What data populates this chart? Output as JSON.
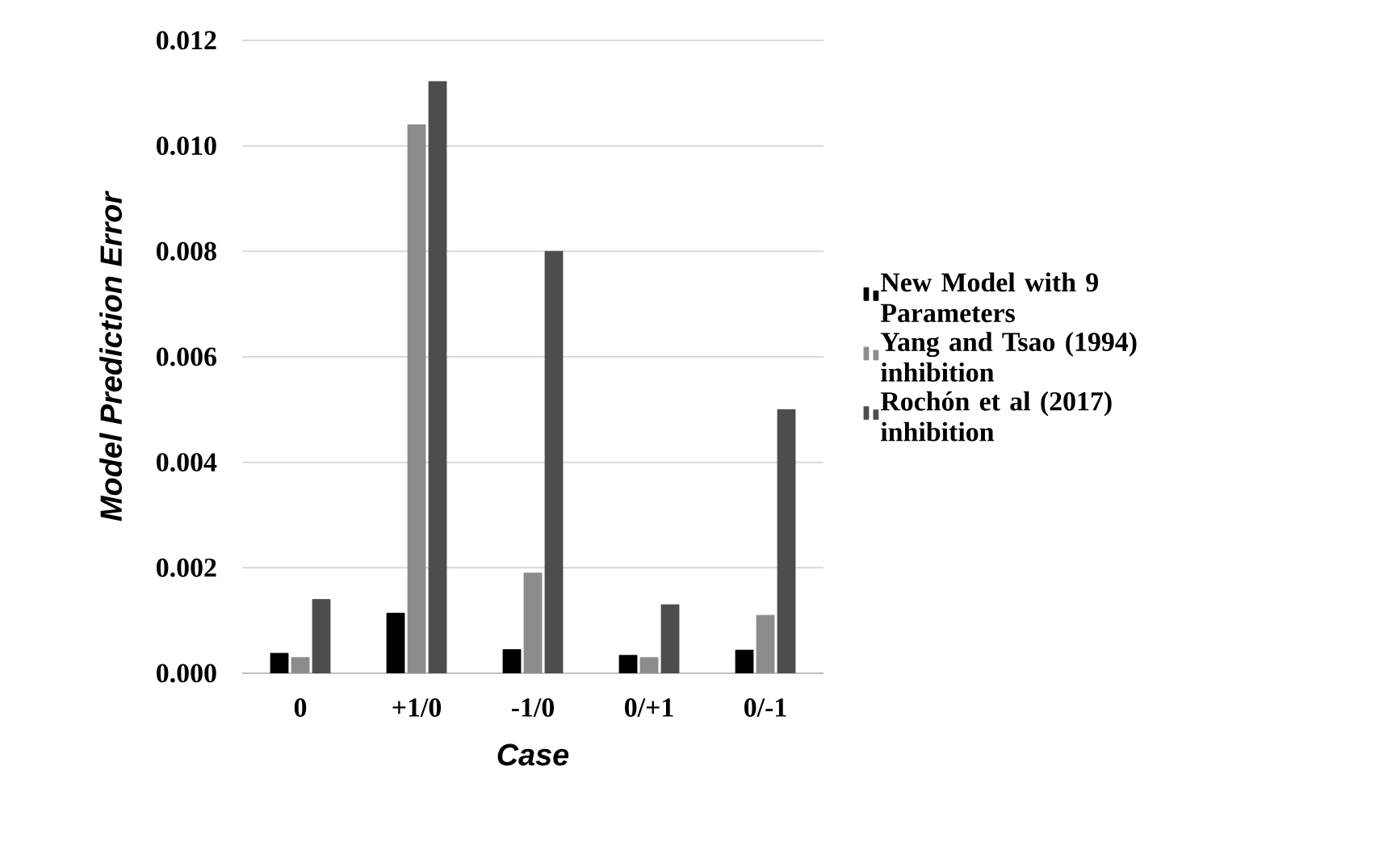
{
  "chart_data": {
    "type": "bar",
    "xlabel": "Case",
    "ylabel": "Model Prediction Error",
    "categories": [
      "0",
      "+1/0",
      "-1/0",
      "0/+1",
      "0/-1"
    ],
    "series": [
      {
        "name": "New Model with 9 Parameters",
        "color": "#000000",
        "values": [
          0.00038,
          0.00114,
          0.00045,
          0.00034,
          0.00044
        ]
      },
      {
        "name": "Yang and Tsao (1994) inhibition",
        "color": "#8c8c8c",
        "values": [
          0.0003,
          0.0104,
          0.0019,
          0.0003,
          0.0011
        ]
      },
      {
        "name": "Rochón et al (2017) inhibition",
        "color": "#4d4d4d",
        "values": [
          0.0014,
          0.01122,
          0.008,
          0.0013,
          0.005
        ]
      }
    ],
    "ylim": [
      0,
      0.012
    ],
    "yticks": [
      {
        "value": 0,
        "label": "0.000"
      },
      {
        "value": 0.002,
        "label": "0.002"
      },
      {
        "value": 0.004,
        "label": "0.004"
      },
      {
        "value": 0.006,
        "label": "0.006"
      },
      {
        "value": 0.008,
        "label": "0.008"
      },
      {
        "value": 0.01,
        "label": "0.010"
      },
      {
        "value": 0.012,
        "label": "0.012"
      }
    ],
    "grid": "y",
    "legend": "right"
  }
}
